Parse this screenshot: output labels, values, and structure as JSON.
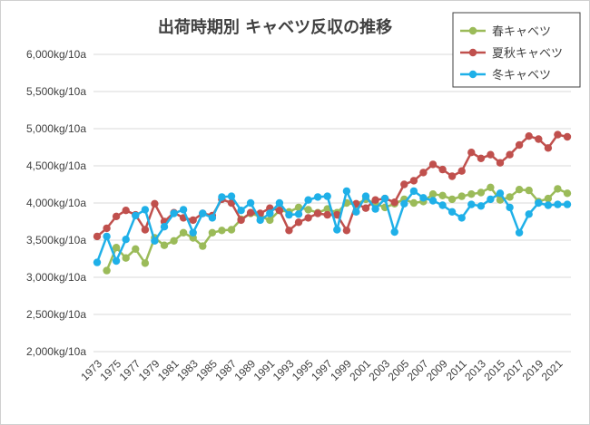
{
  "chart_data": {
    "type": "line",
    "title": "出荷時期別 キャベツ反収の推移",
    "ylim": [
      2000,
      6000
    ],
    "y_ticks": [
      "2,000kg/10a",
      "2,500kg/10a",
      "3,000kg/10a",
      "3,500kg/10a",
      "4,000kg/10a",
      "4,500kg/10a",
      "5,000kg/10a",
      "5,500kg/10a",
      "6,000kg/10a"
    ],
    "y_tick_values": [
      2000,
      2500,
      3000,
      3500,
      4000,
      4500,
      5000,
      5500,
      6000
    ],
    "x": [
      1973,
      1974,
      1975,
      1976,
      1977,
      1978,
      1979,
      1980,
      1981,
      1982,
      1983,
      1984,
      1985,
      1986,
      1987,
      1988,
      1989,
      1990,
      1991,
      1992,
      1993,
      1994,
      1995,
      1996,
      1997,
      1998,
      1999,
      2000,
      2001,
      2002,
      2003,
      2004,
      2005,
      2006,
      2007,
      2008,
      2009,
      2010,
      2011,
      2012,
      2013,
      2014,
      2015,
      2016,
      2017,
      2018,
      2019,
      2020,
      2021,
      2022
    ],
    "x_tick_labels": [
      "1973",
      "1975",
      "1977",
      "1979",
      "1981",
      "1983",
      "1985",
      "1987",
      "1989",
      "1991",
      "1993",
      "1995",
      "1997",
      "1999",
      "2001",
      "2003",
      "2005",
      "2007",
      "2009",
      "2011",
      "2013",
      "2015",
      "2017",
      "2019",
      "2021"
    ],
    "grid": true,
    "legend_position": "top-right",
    "series": [
      {
        "name": "春キャベツ",
        "color": "#9bbb59",
        "values": [
          null,
          3090,
          3400,
          3260,
          3380,
          3190,
          3530,
          3430,
          3490,
          3600,
          3530,
          3420,
          3600,
          3630,
          3640,
          3780,
          3860,
          3820,
          3770,
          3900,
          3880,
          3940,
          3910,
          3870,
          3920,
          3870,
          4000,
          3980,
          4050,
          3990,
          3940,
          3990,
          4050,
          4000,
          4020,
          4120,
          4100,
          4050,
          4090,
          4120,
          4140,
          4210,
          4040,
          4080,
          4180,
          4170,
          4020,
          4060,
          4190,
          4130
        ]
      },
      {
        "name": "夏秋キャベツ",
        "color": "#c0504d",
        "values": [
          3550,
          3660,
          3820,
          3900,
          3840,
          3640,
          3990,
          3750,
          3870,
          3800,
          3770,
          3860,
          3830,
          4050,
          4000,
          3770,
          3870,
          3860,
          3930,
          3900,
          3630,
          3740,
          3800,
          3860,
          3840,
          3840,
          3630,
          3990,
          3930,
          4040,
          4060,
          4010,
          4250,
          4300,
          4410,
          4520,
          4450,
          4360,
          4430,
          4680,
          4600,
          4650,
          4540,
          4650,
          4780,
          4900,
          4860,
          4740,
          4920,
          4890
        ]
      },
      {
        "name": "冬キャベツ",
        "color": "#1fb0e8",
        "values": [
          3200,
          3550,
          3220,
          3510,
          3830,
          3910,
          3490,
          3680,
          3860,
          3910,
          3600,
          3860,
          3800,
          4080,
          4090,
          3900,
          4000,
          3770,
          3860,
          4000,
          3840,
          3850,
          4040,
          4080,
          4090,
          3640,
          4160,
          3880,
          4090,
          3920,
          4060,
          3610,
          3990,
          4160,
          4070,
          4030,
          3970,
          3880,
          3800,
          3980,
          3960,
          4050,
          4130,
          3940,
          3600,
          3850,
          4000,
          3970,
          3980,
          3980
        ]
      }
    ]
  }
}
